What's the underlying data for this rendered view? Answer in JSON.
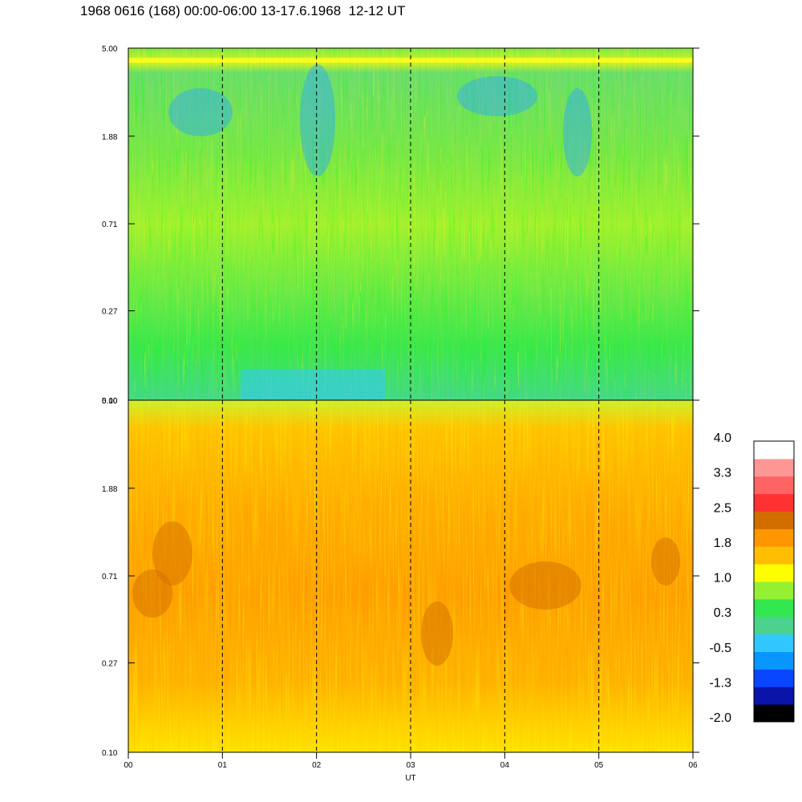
{
  "title": "1968 0616 (168) 00:00-06:00 13-17.6.1968  12-12 UT",
  "chart_data": {
    "type": "heatmap",
    "title": "1968 0616 (168) 00:00-06:00 13-17.6.1968  12-12 UT",
    "xlabel": "UT",
    "x_tick_labels": [
      "00",
      "01",
      "02",
      "03",
      "04",
      "05",
      "06"
    ],
    "xlim": [
      0,
      6
    ],
    "x_dashed_lines": [
      1,
      2,
      3,
      4,
      5
    ],
    "y_scale": "log",
    "panels": [
      {
        "name": "upper",
        "y_tick_labels": [
          "5.00",
          "1.88",
          "0.71",
          "0.27",
          "0.10"
        ],
        "y_tick_values": [
          5.0,
          1.88,
          0.71,
          0.27,
          0.1
        ],
        "ylim": [
          0.1,
          5.0
        ],
        "dominant_value_range": [
          0.3,
          1.0
        ],
        "minimum_features": [
          "blue patches near 5.00-1.88 around 02 UT and 04.7 UT",
          "cyan band near 0.10 from 01 to 03 UT"
        ]
      },
      {
        "name": "lower",
        "y_tick_labels": [
          "5.00",
          "1.88",
          "0.71",
          "0.27",
          "0.10"
        ],
        "y_tick_values": [
          5.0,
          1.88,
          0.71,
          0.27,
          0.1
        ],
        "ylim": [
          0.1,
          5.0
        ],
        "dominant_value_range": [
          1.0,
          1.8
        ],
        "maximum_features": [
          "dark orange patches near 0.71-1.88 around 00.3 UT and 04.5 UT"
        ]
      }
    ],
    "colorbar": {
      "tick_labels": [
        "4.0",
        "3.3",
        "2.5",
        "1.8",
        "1.0",
        "0.3",
        "-0.5",
        "-1.3",
        "-2.0"
      ],
      "min": -2.0,
      "max": 4.0,
      "colors": [
        "#000000",
        "#0a14a8",
        "#0a46ff",
        "#0a96ff",
        "#32c8ff",
        "#4bd28c",
        "#32e650",
        "#96f032",
        "#ffff00",
        "#ffbe00",
        "#ff9600",
        "#d26e00",
        "#ff3232",
        "#ff6464",
        "#ff9696",
        "#ffffff"
      ]
    }
  }
}
